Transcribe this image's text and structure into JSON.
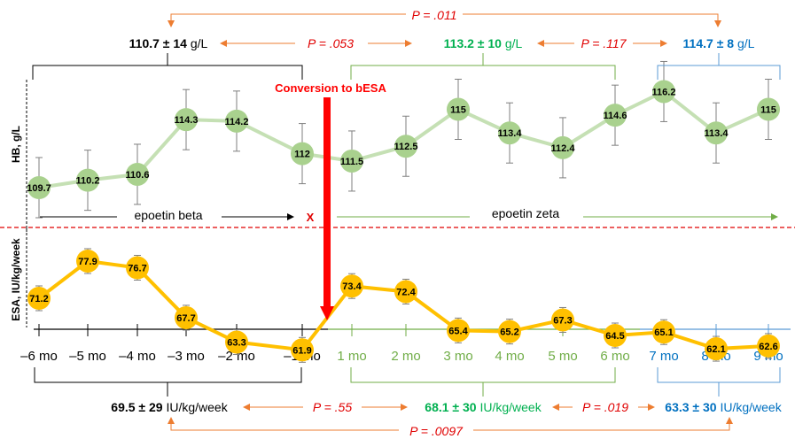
{
  "colors": {
    "pre": "#000000",
    "zeta": "#00b050",
    "late": "#0070c0",
    "p": "#e00000",
    "arrow": "#ed7d31",
    "hb_line": "#c5e0b4",
    "hb_marker": "#a9d18e",
    "esa_line": "#ffc000",
    "conv": "#ff0000",
    "zeta_bracket": "#70ad47",
    "late_bracket": "#5b9bd5",
    "error_bar": "#7f7f7f"
  },
  "chart_data": {
    "type": "line",
    "categories": [
      "–6 mo",
      "–5 mo",
      "–4 mo",
      "–3 mo",
      "–2 mo",
      "–1 mo",
      "1 mo",
      "2 mo",
      "3 mo",
      "4 mo",
      "5 mo",
      "6 mo",
      "7 mo",
      "8 mo",
      "9 mo"
    ],
    "series": [
      {
        "key": "hb",
        "values": [
          109.7,
          110.2,
          110.6,
          114.3,
          114.2,
          112,
          111.5,
          112.5,
          115,
          113.4,
          112.4,
          114.6,
          116.2,
          113.4,
          115
        ]
      },
      {
        "key": "esa",
        "values": [
          71.2,
          77.9,
          76.7,
          67.7,
          63.3,
          61.9,
          73.4,
          72.4,
          65.4,
          65.2,
          67.3,
          64.5,
          65.1,
          62.1,
          62.6
        ]
      }
    ],
    "hb_axis_label": "HB, g/L",
    "esa_axis_label": "ESA, IU/kg/week",
    "conversion_label": "Conversion to bESA",
    "x_marker": "X",
    "period_labels": {
      "beta": "epoetin beta",
      "zeta": "epoetin zeta"
    },
    "hb_summary": {
      "pre": {
        "mean": "110.7",
        "pm": " ± ",
        "sd": "14",
        "unit": " g/L"
      },
      "zeta": {
        "mean": "113.2",
        "pm": " ± ",
        "sd": "10",
        "unit": " g/L"
      },
      "late": {
        "mean": "114.7",
        "pm": " ± ",
        "sd": "8",
        "unit": " g/L"
      },
      "p_pre_late": "P = .011",
      "p_pre_zeta": "P = .053",
      "p_zeta_late": "P = .117"
    },
    "esa_summary": {
      "pre": {
        "mean": "69.5",
        "pm": " ± ",
        "sd": "29",
        "unit": " IU/kg/week"
      },
      "zeta": {
        "mean": "68.1",
        "pm": " ± ",
        "sd": "30",
        "unit": " IU/kg/week"
      },
      "late": {
        "mean": "63.3",
        "pm": " ± ",
        "sd": "30",
        "unit": " IU/kg/week"
      },
      "p_pre_zeta": "P = .55",
      "p_zeta_late": "P = .019",
      "p_pre_late": "P = .0097"
    }
  }
}
